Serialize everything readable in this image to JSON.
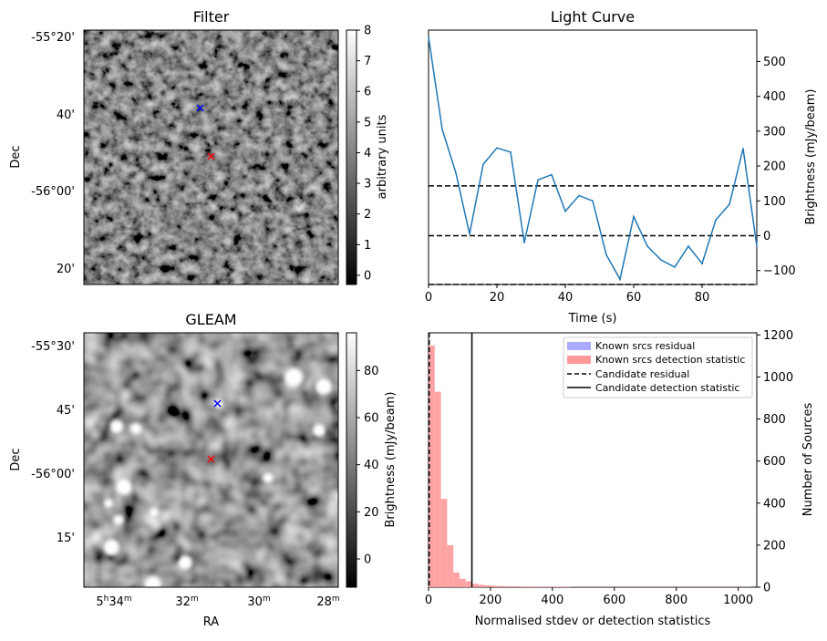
{
  "colors": {
    "line": "#1f77b4",
    "marker_red": "#ff0000",
    "marker_blue": "#0000ff",
    "hist_red": "#ff9a9a",
    "hist_blue": "#aaaaff"
  },
  "filter_panel": {
    "title": "Filter",
    "ylabel": "Dec",
    "yticks": [
      "-55°20'",
      "40'",
      "-56°00'",
      "20'"
    ],
    "colorbar": {
      "label": "arbitrary units",
      "ticks": [
        "8",
        "7",
        "6",
        "5",
        "4",
        "3",
        "2",
        "1",
        "0"
      ],
      "range": [
        -0.3,
        8
      ]
    },
    "markers": [
      {
        "color": "blue",
        "symbol": "x"
      },
      {
        "color": "red",
        "symbol": "x"
      }
    ]
  },
  "gleam_panel": {
    "title": "GLEAM",
    "ylabel": "Dec",
    "xlabel": "RA",
    "yticks": [
      "-55°30'",
      "45'",
      "-56°00'",
      "15'"
    ],
    "xticks": [
      {
        "base": "5",
        "sup1": "h",
        "mid": "34",
        "sup2": "m"
      },
      {
        "base": "32",
        "sup1": "",
        "mid": "",
        "sup2": "m"
      },
      {
        "base": "30",
        "sup1": "",
        "mid": "",
        "sup2": "m"
      },
      {
        "base": "28",
        "sup1": "",
        "mid": "",
        "sup2": "m"
      }
    ],
    "colorbar": {
      "label": "Brightness (mJy/beam)",
      "ticks": [
        "80",
        "60",
        "40",
        "20",
        "0"
      ],
      "range": [
        -12,
        96
      ]
    },
    "markers": [
      {
        "color": "blue",
        "symbol": "x"
      },
      {
        "color": "red",
        "symbol": "x"
      }
    ]
  },
  "chart_data": [
    {
      "type": "line",
      "title": "Light Curve",
      "xlabel": "Time (s)",
      "ylabel": "Brightness (mJy/beam)",
      "xlim": [
        0,
        96
      ],
      "ylim": [
        -140,
        590
      ],
      "xticks": [
        0,
        20,
        40,
        60,
        80
      ],
      "yticks": [
        -100,
        0,
        100,
        200,
        300,
        400,
        500
      ],
      "x": [
        0,
        4,
        8,
        12,
        16,
        20,
        24,
        28,
        32,
        36,
        40,
        44,
        48,
        52,
        56,
        60,
        64,
        68,
        72,
        76,
        80,
        84,
        88,
        92,
        96
      ],
      "y": [
        570,
        305,
        180,
        5,
        205,
        252,
        240,
        -20,
        160,
        175,
        70,
        115,
        100,
        -55,
        -125,
        55,
        -30,
        -70,
        -90,
        -30,
        -80,
        45,
        90,
        250,
        -30
      ],
      "hlines": [
        143,
        0,
        -140
      ]
    },
    {
      "type": "histogram",
      "xlabel": "Normalised stdev or detection statistics",
      "ylabel": "Number of Sources",
      "xlim": [
        0,
        1060
      ],
      "ylim": [
        0,
        1210
      ],
      "xticks": [
        0,
        200,
        400,
        600,
        800,
        1000
      ],
      "yticks": [
        0,
        200,
        400,
        600,
        800,
        1000,
        1200
      ],
      "legend": [
        "Known srcs residual",
        "Known srcs detection statistic",
        "Candidate residual",
        "Candidate detection statistic"
      ],
      "legend_position": "upper right",
      "bin_width": 20,
      "series": [
        {
          "name": "Known srcs residual",
          "bin_start": 0,
          "values": [
            8
          ]
        },
        {
          "name": "Known srcs detection statistic",
          "bin_start": 0,
          "values": [
            1150,
            930,
            420,
            200,
            70,
            40,
            28,
            16,
            12,
            9,
            7,
            6,
            5,
            4,
            4,
            3,
            3,
            3,
            2,
            2,
            2,
            2,
            2,
            1,
            1,
            1,
            1,
            1,
            1,
            1,
            1,
            1,
            1,
            1,
            1,
            1,
            1,
            1,
            1,
            1,
            1,
            1,
            1,
            1,
            1,
            1,
            1,
            1,
            1,
            1,
            1,
            1
          ]
        }
      ],
      "vlines": [
        {
          "name": "Candidate residual",
          "x": 2,
          "style": "dashed"
        },
        {
          "name": "Candidate detection statistic",
          "x": 140,
          "style": "solid"
        }
      ]
    }
  ]
}
